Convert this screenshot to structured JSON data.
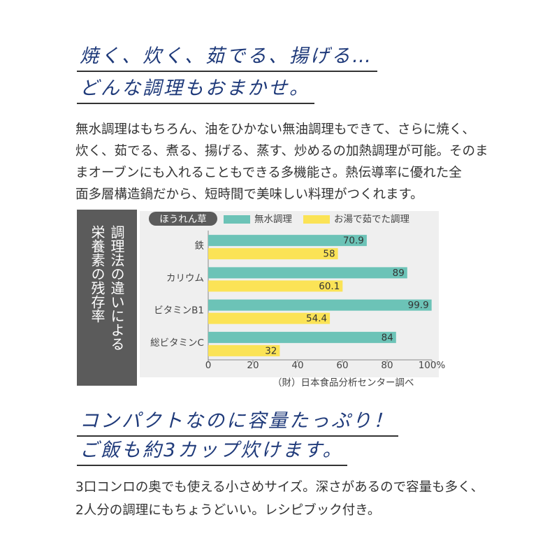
{
  "heading1": [
    "焼く、炊く、茹でる、揚げる…",
    "どんな調理もおまかせ。"
  ],
  "paragraph1": [
    "無水調理はもちろん、油をひかない無油調理もできて、さらに焼く、",
    "炊く、茹でる、煮る、揚げる、蒸す、炒めるの加熱調理が可能。そのま",
    "まオーブンにも入れることもできる多機能さ。熱伝導率に優れた全",
    "面多層構造鍋だから、短時間で美味しい料理がつくれます。"
  ],
  "chart_data": {
    "type": "bar",
    "orientation": "horizontal",
    "title": [
      "調理法の違いによる",
      "栄養素の残存率"
    ],
    "subject": "ほうれん草",
    "categories": [
      "鉄",
      "カリウム",
      "ビタミンB1",
      "総ビタミンC"
    ],
    "series": [
      {
        "name": "無水調理",
        "color": "#6cc3b7",
        "values": [
          70.9,
          89,
          99.9,
          84
        ]
      },
      {
        "name": "お湯で茹でた調理",
        "color": "#fbe356",
        "values": [
          58,
          60.1,
          54.4,
          32
        ]
      }
    ],
    "xlim": [
      0,
      100
    ],
    "xticks": [
      0,
      20,
      40,
      60,
      80,
      {
        "value": 100,
        "label": "100%"
      }
    ],
    "source": "（財）日本食品分析センター調べ"
  },
  "heading2": [
    "コンパクトなのに容量たっぷり！",
    "ご飯も約3カップ炊けます。"
  ],
  "paragraph2": [
    "3口コンロの奥でも使える小さめサイズ。深さがあるので容量も多く、",
    "2人分の調理にもちょうどいい。レシピブック付き。"
  ]
}
